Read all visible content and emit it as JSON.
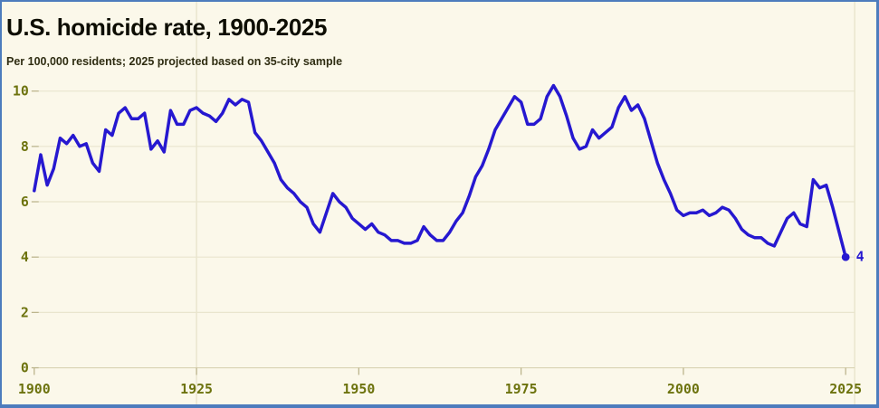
{
  "header": {
    "title": "U.S. homicide rate, 1900-2025",
    "subtitle": "Per 100,000 residents; 2025 projected based on 35-city sample"
  },
  "chart_data": {
    "type": "line",
    "series_name": "U.S. homicide rate per 100,000 residents",
    "x_start": 1900,
    "x_end": 2025,
    "x_step": 1,
    "values": [
      6.4,
      7.7,
      6.6,
      7.2,
      8.3,
      8.1,
      8.4,
      8.0,
      8.1,
      7.4,
      7.1,
      8.6,
      8.4,
      9.2,
      9.4,
      9.0,
      9.0,
      9.2,
      7.9,
      8.2,
      7.8,
      9.3,
      8.8,
      8.8,
      9.3,
      9.4,
      9.2,
      9.1,
      8.9,
      9.2,
      9.7,
      9.5,
      9.7,
      9.6,
      8.5,
      8.2,
      7.8,
      7.4,
      6.8,
      6.5,
      6.3,
      6.0,
      5.8,
      5.2,
      4.9,
      5.6,
      6.3,
      6.0,
      5.8,
      5.4,
      5.2,
      5.0,
      5.2,
      4.9,
      4.8,
      4.6,
      4.6,
      4.5,
      4.5,
      4.6,
      5.1,
      4.8,
      4.6,
      4.6,
      4.9,
      5.3,
      5.6,
      6.2,
      6.9,
      7.3,
      7.9,
      8.6,
      9.0,
      9.4,
      9.8,
      9.6,
      8.8,
      8.8,
      9.0,
      9.8,
      10.2,
      9.8,
      9.1,
      8.3,
      7.9,
      8.0,
      8.6,
      8.3,
      8.5,
      8.7,
      9.4,
      9.8,
      9.3,
      9.5,
      9.0,
      8.2,
      7.4,
      6.8,
      6.3,
      5.7,
      5.5,
      5.6,
      5.6,
      5.7,
      5.5,
      5.6,
      5.8,
      5.7,
      5.4,
      5.0,
      4.8,
      4.7,
      4.7,
      4.5,
      4.4,
      4.9,
      5.4,
      5.6,
      5.2,
      5.1,
      6.8,
      6.5,
      6.6,
      5.8,
      4.9,
      4.0
    ],
    "x_ticks": [
      1900,
      1925,
      1950,
      1975,
      2000,
      2025
    ],
    "y_ticks": [
      0,
      2,
      4,
      6,
      8,
      10
    ],
    "ylim": [
      0,
      10.5
    ],
    "end_label": "4",
    "end_value": 4.0,
    "grid": "horizontal",
    "legend": "none",
    "vertical_rule_years": [
      1925
    ],
    "colors": {
      "line": "#2618d0",
      "background": "#fbf8ea",
      "tick_label": "#6d730e",
      "gridline": "#e9e5ce",
      "axis": "#d9d3b3",
      "tick_mark": "#bcb58d",
      "vertical_rule": "#e5e1c7",
      "title": "#0d0d02",
      "subtitle": "#2f2d12",
      "border": "#4d7cbd"
    }
  }
}
